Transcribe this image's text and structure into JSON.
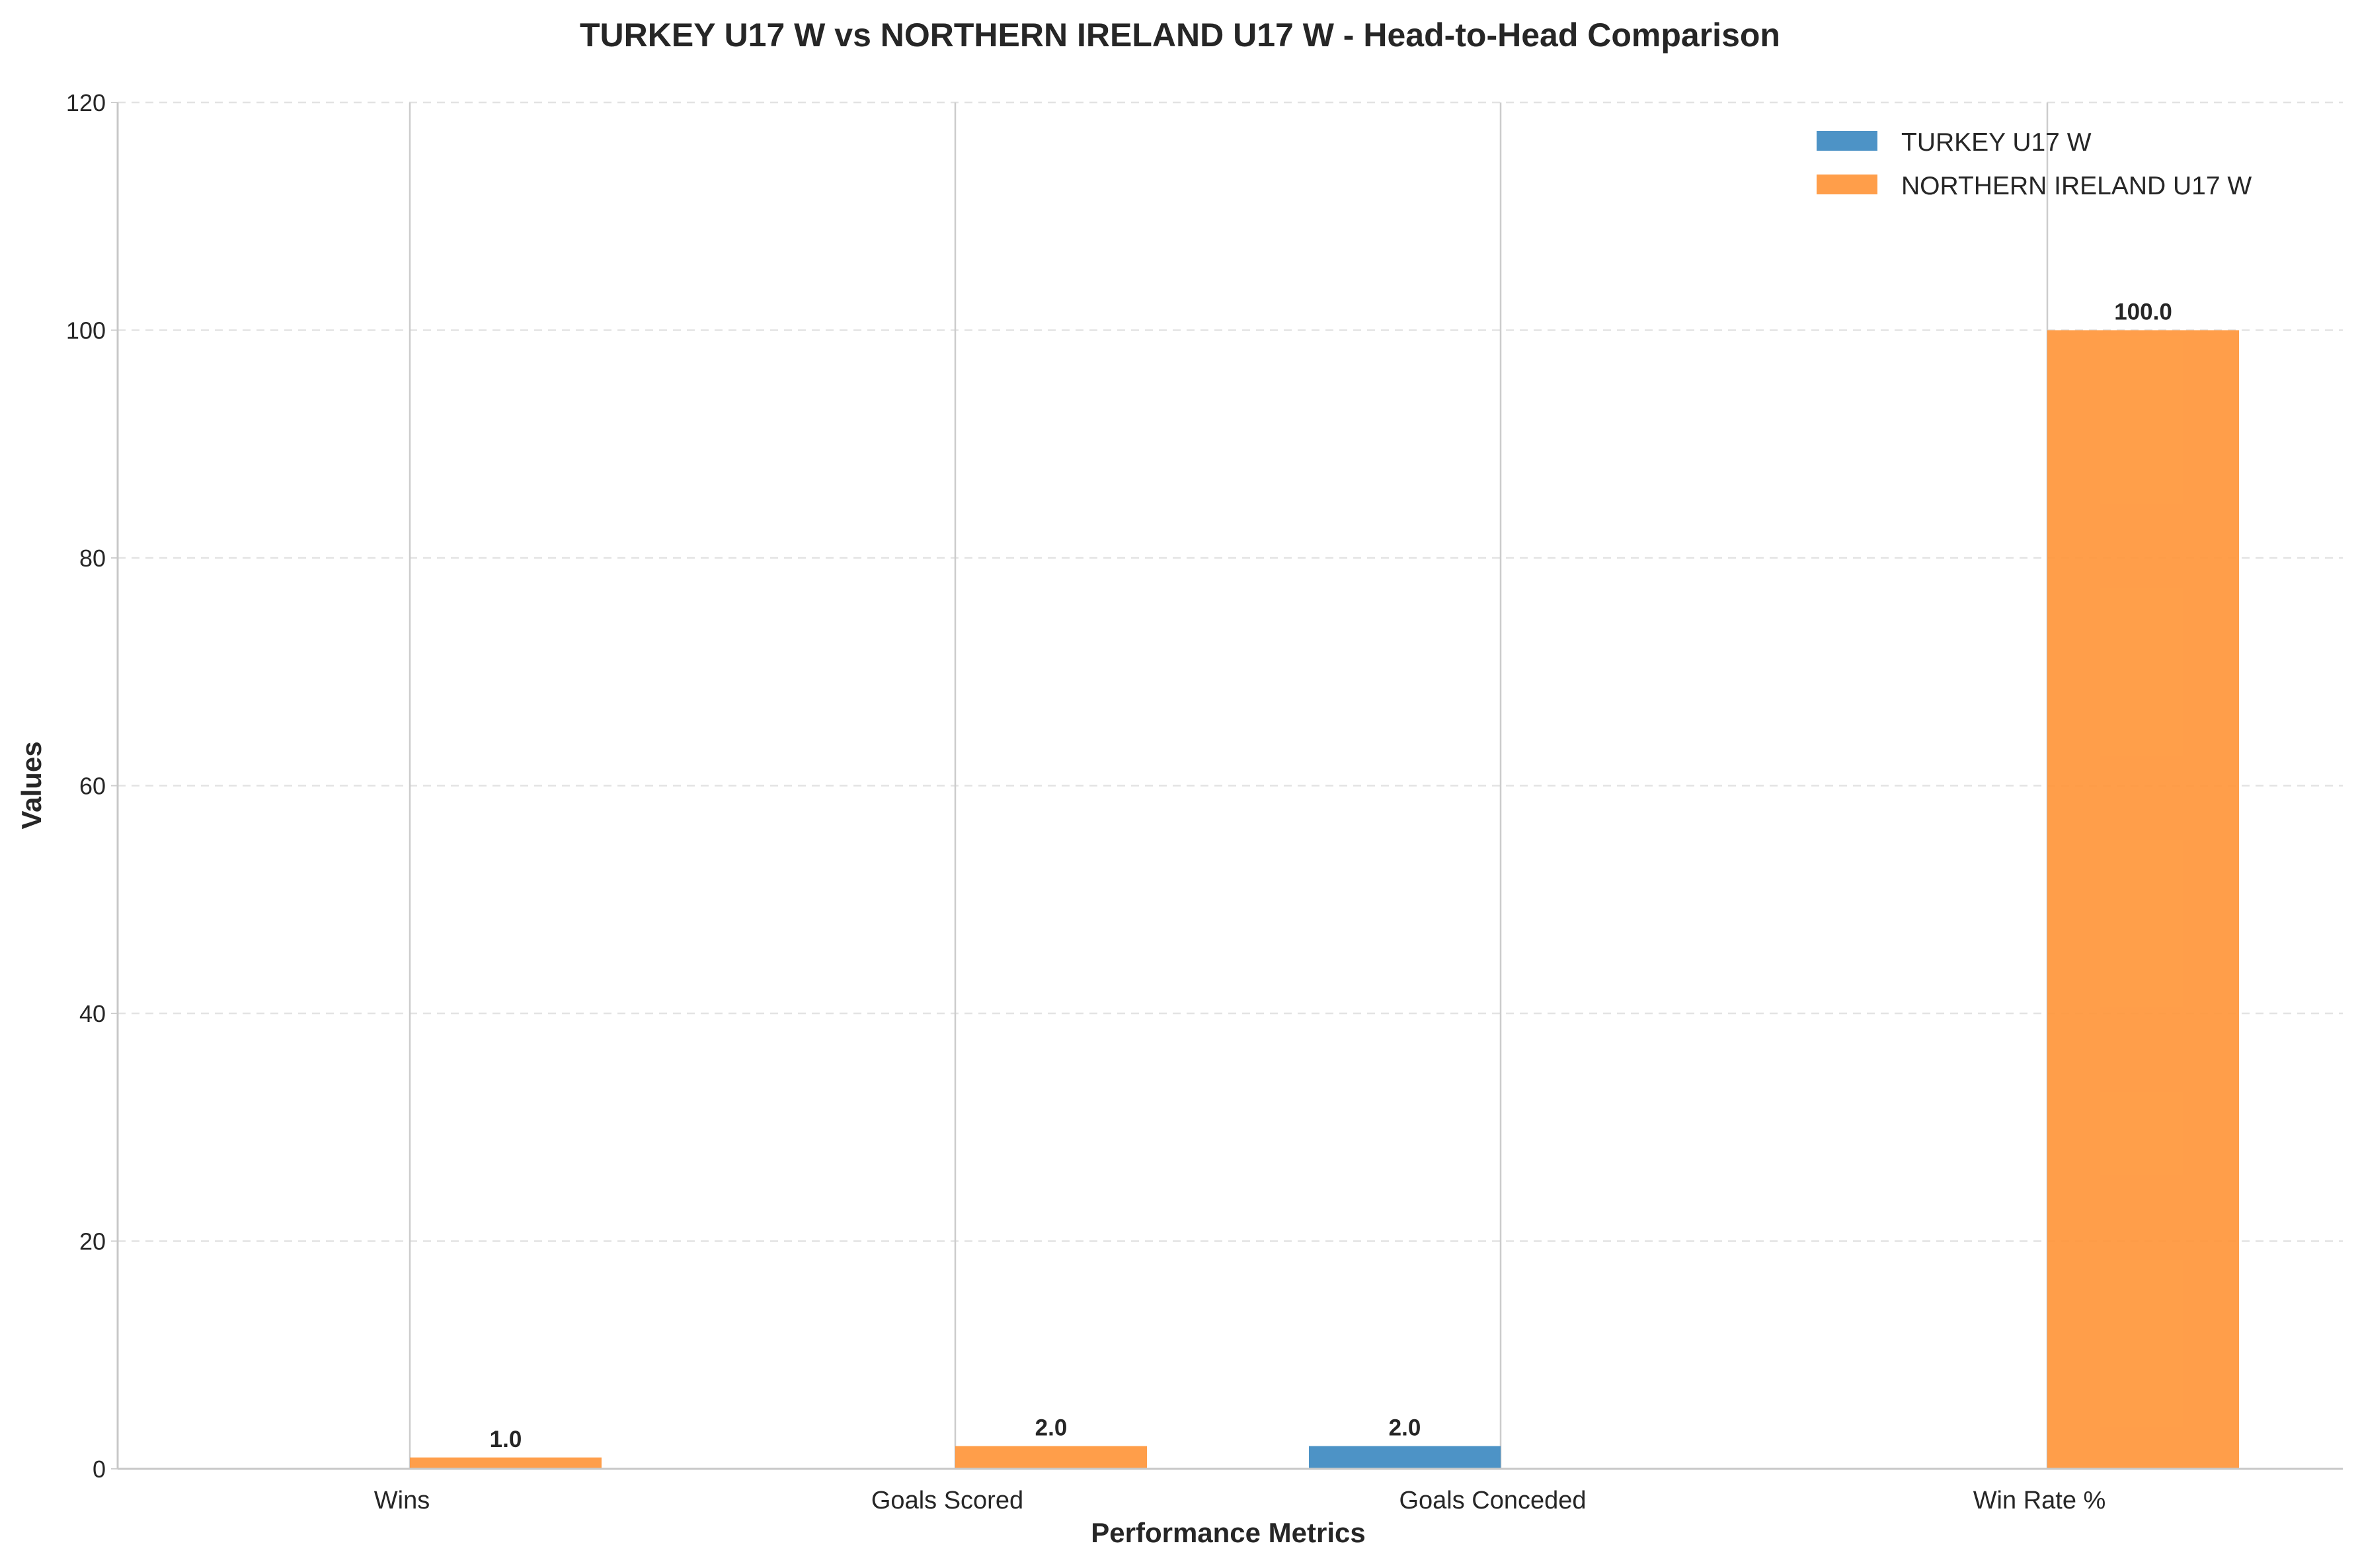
{
  "chart_data": {
    "type": "bar",
    "title": "TURKEY U17 W vs NORTHERN IRELAND U17 W - Head-to-Head Comparison",
    "xlabel": "Performance Metrics",
    "ylabel": "Values",
    "categories": [
      "Wins",
      "Goals Scored",
      "Goals Conceded",
      "Win Rate %"
    ],
    "ylim": [
      0,
      120
    ],
    "yticks": [
      0,
      20,
      40,
      60,
      80,
      100,
      120
    ],
    "grid": "horizontal-dashed",
    "legend_position": "top-right",
    "series": [
      {
        "name": "TURKEY U17 W",
        "color": "#3a87c0",
        "values": [
          0,
          0,
          2,
          0
        ],
        "labels": [
          "",
          "",
          "2.0",
          ""
        ]
      },
      {
        "name": "NORTHERN IRELAND U17 W",
        "color": "#ff9436",
        "values": [
          1,
          2,
          0,
          100
        ],
        "labels": [
          "1.0",
          "2.0",
          "",
          "100.0"
        ]
      }
    ]
  }
}
